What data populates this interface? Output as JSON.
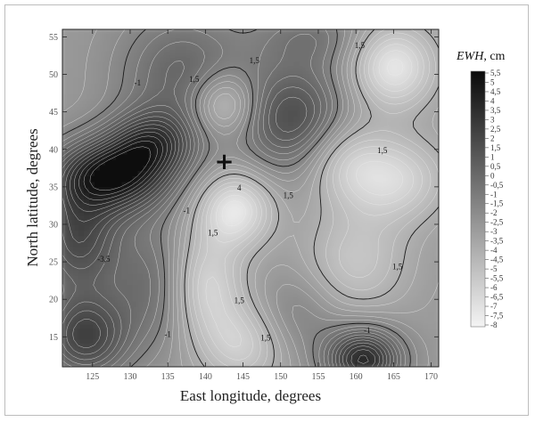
{
  "chart_data": {
    "type": "heatmap",
    "subtype": "grayscale filled contour map with contour lines",
    "xlabel": "East longitude, degrees",
    "ylabel": "North latitude, degrees",
    "xlim": [
      121,
      171
    ],
    "ylim": [
      11,
      56
    ],
    "xticks": [
      125,
      130,
      135,
      140,
      145,
      150,
      155,
      160,
      165,
      170
    ],
    "yticks": [
      15,
      20,
      25,
      30,
      35,
      40,
      45,
      50,
      55
    ],
    "colorbar": {
      "title_prefix": "EWH",
      "title_suffix": ", cm",
      "range": [
        -8,
        5.5
      ],
      "step": 0.5,
      "labels": [
        "5,5",
        "5",
        "4,5",
        "4",
        "3,5",
        "3",
        "2,5",
        "2",
        "1,5",
        "1",
        "0,5",
        "0",
        "-0,5",
        "-1",
        "-1,5",
        "-2",
        "-2,5",
        "-3",
        "-3,5",
        "-4",
        "-4,5",
        "-5",
        "-5,5",
        "-6",
        "-6,5",
        "-7",
        "-7,5",
        "-8"
      ],
      "low_color": "#0a0a0a",
      "high_color": "#f4f4f4"
    },
    "field_centers": [
      {
        "lon": 127.5,
        "lat": 36.5,
        "value": -7.5,
        "sx": 5.5,
        "sy": 3.5
      },
      {
        "lon": 133,
        "lat": 41,
        "value": -4.5,
        "sx": 4,
        "sy": 3
      },
      {
        "lon": 123,
        "lat": 28,
        "value": -4.5,
        "sx": 4,
        "sy": 5
      },
      {
        "lon": 137,
        "lat": 50,
        "value": -3,
        "sx": 6,
        "sy": 6
      },
      {
        "lon": 124,
        "lat": 15,
        "value": -5,
        "sx": 4,
        "sy": 4
      },
      {
        "lon": 133,
        "lat": 22,
        "value": -2.5,
        "sx": 4,
        "sy": 6
      },
      {
        "lon": 152,
        "lat": 44,
        "value": -4.5,
        "sx": 5,
        "sy": 5
      },
      {
        "lon": 142.5,
        "lat": 46,
        "value": 3.5,
        "sx": 3,
        "sy": 3
      },
      {
        "lon": 144,
        "lat": 32,
        "value": 4.5,
        "sx": 3.5,
        "sy": 3.5
      },
      {
        "lon": 140,
        "lat": 22,
        "value": 3.5,
        "sx": 3.5,
        "sy": 5
      },
      {
        "lon": 145,
        "lat": 14,
        "value": 3,
        "sx": 4,
        "sy": 4
      },
      {
        "lon": 165,
        "lat": 51,
        "value": 4.5,
        "sx": 4,
        "sy": 4
      },
      {
        "lon": 165,
        "lat": 36,
        "value": 3.5,
        "sx": 5,
        "sy": 4
      },
      {
        "lon": 158,
        "lat": 39,
        "value": 2.5,
        "sx": 4,
        "sy": 4
      },
      {
        "lon": 160,
        "lat": 25,
        "value": 2.5,
        "sx": 5,
        "sy": 5
      },
      {
        "lon": 152,
        "lat": 18,
        "value": -1.5,
        "sx": 4,
        "sy": 4
      },
      {
        "lon": 161,
        "lat": 12,
        "value": -6.5,
        "sx": 3.5,
        "sy": 3
      },
      {
        "lon": 154,
        "lat": 55,
        "value": -2,
        "sx": 5,
        "sy": 3
      }
    ],
    "contour_labels": [
      {
        "lon": 131,
        "lat": 48.5,
        "text": "-1"
      },
      {
        "lon": 138.5,
        "lat": 49,
        "text": "1,5"
      },
      {
        "lon": 146.5,
        "lat": 51.5,
        "text": "1,5"
      },
      {
        "lon": 160.5,
        "lat": 53.5,
        "text": "1,5"
      },
      {
        "lon": 163.5,
        "lat": 39.5,
        "text": "1,5"
      },
      {
        "lon": 137.5,
        "lat": 31.5,
        "text": "-1"
      },
      {
        "lon": 141,
        "lat": 28.5,
        "text": "1,5"
      },
      {
        "lon": 144.5,
        "lat": 34.5,
        "text": "4"
      },
      {
        "lon": 151,
        "lat": 33.5,
        "text": "1,5"
      },
      {
        "lon": 126.5,
        "lat": 25,
        "text": "-3,5"
      },
      {
        "lon": 144.5,
        "lat": 19.5,
        "text": "1,5"
      },
      {
        "lon": 135,
        "lat": 15,
        "text": "-1"
      },
      {
        "lon": 148,
        "lat": 14.5,
        "text": "1,5"
      },
      {
        "lon": 165.5,
        "lat": 24,
        "text": "1,5"
      },
      {
        "lon": 161.5,
        "lat": 15.5,
        "text": "-1"
      }
    ],
    "marker": {
      "lon": 142.5,
      "lat": 38.3,
      "symbol": "+"
    }
  }
}
